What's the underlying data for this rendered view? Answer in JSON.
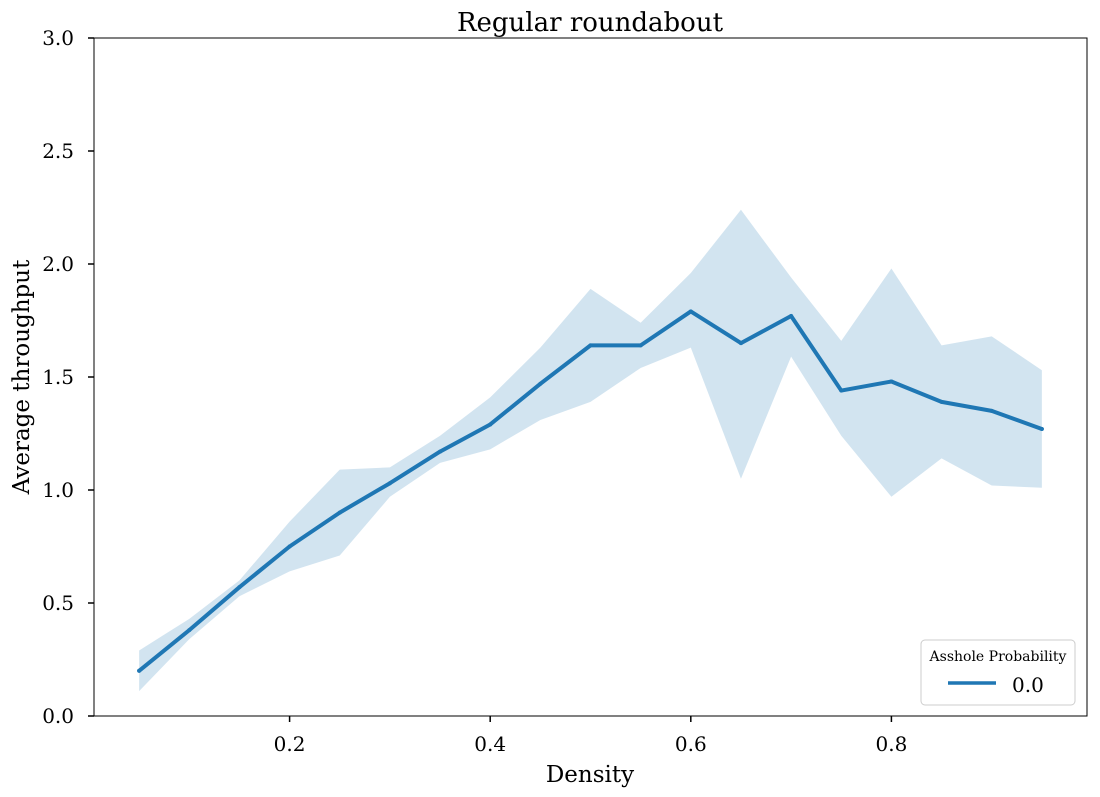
{
  "chart_data": {
    "type": "line",
    "title": "Regular roundabout",
    "xlabel": "Density",
    "ylabel": "Average throughput",
    "xlim": [
      0.005,
      0.995
    ],
    "ylim": [
      0.0,
      3.0
    ],
    "x_ticks": [
      0.2,
      0.4,
      0.6,
      0.8
    ],
    "x_tick_labels": [
      "0.2",
      "0.4",
      "0.6",
      "0.8"
    ],
    "y_ticks": [
      0.0,
      0.5,
      1.0,
      1.5,
      2.0,
      2.5,
      3.0
    ],
    "y_tick_labels": [
      "0.0",
      "0.5",
      "1.0",
      "1.5",
      "2.0",
      "2.5",
      "3.0"
    ],
    "grid": false,
    "legend": {
      "title": "Asshole Probability",
      "placement": "bottom-right"
    },
    "series": [
      {
        "name": "0.0",
        "color": "#1f77b4",
        "band_color": "#1f77b4",
        "x": [
          0.05,
          0.1,
          0.15,
          0.2,
          0.25,
          0.3,
          0.35,
          0.4,
          0.45,
          0.5,
          0.55,
          0.6,
          0.65,
          0.7,
          0.75,
          0.8,
          0.85,
          0.9,
          0.95
        ],
        "y": [
          0.2,
          0.38,
          0.57,
          0.75,
          0.9,
          1.03,
          1.17,
          1.29,
          1.47,
          1.64,
          1.64,
          1.79,
          1.65,
          1.77,
          1.44,
          1.48,
          1.39,
          1.35,
          1.27
        ],
        "y_lower": [
          0.11,
          0.34,
          0.53,
          0.64,
          0.71,
          0.97,
          1.12,
          1.18,
          1.31,
          1.39,
          1.54,
          1.63,
          1.05,
          1.59,
          1.24,
          0.97,
          1.14,
          1.02,
          1.01
        ],
        "y_upper": [
          0.29,
          0.43,
          0.6,
          0.86,
          1.09,
          1.1,
          1.24,
          1.41,
          1.63,
          1.89,
          1.74,
          1.96,
          2.24,
          1.94,
          1.66,
          1.98,
          1.64,
          1.68,
          1.53
        ]
      }
    ]
  }
}
